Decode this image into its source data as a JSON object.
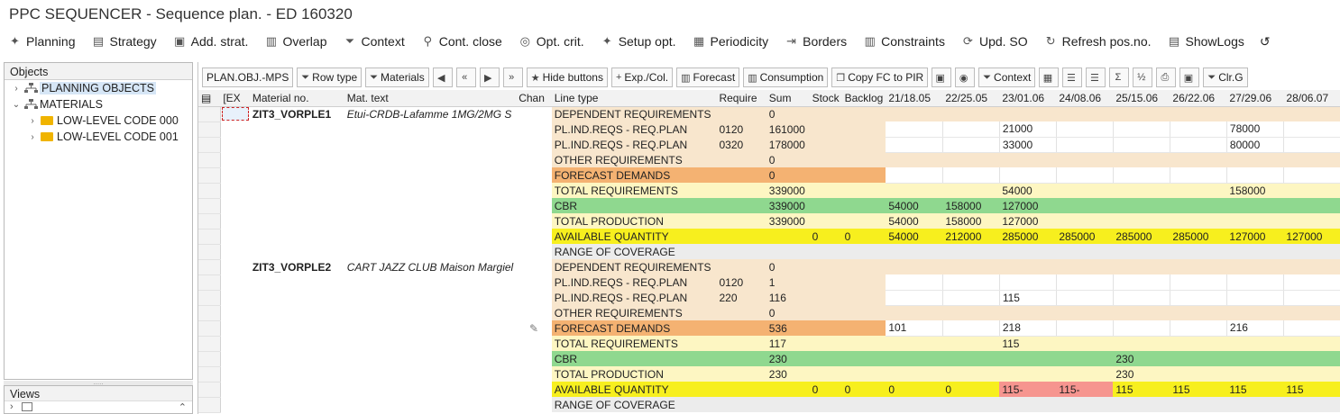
{
  "window": {
    "title": "PPC SEQUENCER - Sequence plan. - ED 160320"
  },
  "toolbar": [
    {
      "name": "planning-button",
      "icon": "wand-icon",
      "label": "Planning"
    },
    {
      "name": "strategy-button",
      "icon": "strategy-icon",
      "label": "Strategy"
    },
    {
      "name": "add-strat-button",
      "icon": "add-strategy-icon",
      "label": "Add. strat."
    },
    {
      "name": "overlap-button",
      "icon": "bar-chart-icon",
      "label": "Overlap"
    },
    {
      "name": "context-button",
      "icon": "filter-icon",
      "label": "Context"
    },
    {
      "name": "cont-close-button",
      "icon": "pin-icon",
      "label": "Cont. close"
    },
    {
      "name": "opt-crit-button",
      "icon": "criteria-icon",
      "label": "Opt. crit."
    },
    {
      "name": "setup-opt-button",
      "icon": "wand-icon",
      "label": "Setup opt."
    },
    {
      "name": "periodicity-button",
      "icon": "calendar-icon",
      "label": "Periodicity"
    },
    {
      "name": "borders-button",
      "icon": "borders-icon",
      "label": "Borders"
    },
    {
      "name": "constraints-button",
      "icon": "bar-chart-icon",
      "label": "Constraints"
    },
    {
      "name": "upd-so-button",
      "icon": "update-icon",
      "label": "Upd. SO"
    },
    {
      "name": "refresh-pos-button",
      "icon": "refresh-icon",
      "label": "Refresh pos.no."
    },
    {
      "name": "showlogs-button",
      "icon": "log-icon",
      "label": "ShowLogs"
    }
  ],
  "objects_panel": {
    "title": "Objects",
    "tree": [
      {
        "label": "PLANNING OBJECTS",
        "level": 0,
        "icon": "hierarchy-icon",
        "selected": true
      },
      {
        "label": "MATERIALS",
        "level": 0,
        "icon": "hierarchy-icon",
        "expanded": true
      },
      {
        "label": "LOW-LEVEL CODE 000",
        "level": 1,
        "icon": "folder-icon"
      },
      {
        "label": "LOW-LEVEL CODE 001",
        "level": 1,
        "icon": "folder-icon"
      }
    ]
  },
  "views_panel": {
    "title": "Views"
  },
  "grid_toolbar": [
    {
      "name": "plan-obj-mps-button",
      "icon": "",
      "label": "PLAN.OBJ.-MPS"
    },
    {
      "name": "row-type-button",
      "icon": "filter-icon",
      "label": "Row type"
    },
    {
      "name": "materials-button",
      "icon": "filter-icon",
      "label": "Materials"
    },
    {
      "name": "prev-button",
      "icon": "triangle-left-icon",
      "label": ""
    },
    {
      "name": "first-button",
      "icon": "double-chevron-left-icon",
      "label": ""
    },
    {
      "name": "next-button",
      "icon": "triangle-right-icon",
      "label": ""
    },
    {
      "name": "last-button",
      "icon": "double-chevron-right-icon",
      "label": ""
    },
    {
      "name": "hide-buttons-button",
      "icon": "star-icon",
      "label": "Hide buttons"
    },
    {
      "name": "exp-col-button",
      "icon": "plus-icon",
      "label": "Exp./Col."
    },
    {
      "name": "forecast-button",
      "icon": "chart-icon",
      "label": "Forecast"
    },
    {
      "name": "consumption-button",
      "icon": "chart-icon",
      "label": "Consumption"
    },
    {
      "name": "copy-fc-to-pir-button",
      "icon": "copy-icon",
      "label": "Copy FC to PIR"
    },
    {
      "name": "calc-button",
      "icon": "calc-icon",
      "label": ""
    },
    {
      "name": "find-button",
      "icon": "binoculars-icon",
      "label": ""
    },
    {
      "name": "context-grid-button",
      "icon": "filter-icon",
      "label": "Context"
    },
    {
      "name": "layout-button",
      "icon": "layout-icon",
      "label": ""
    },
    {
      "name": "align-button",
      "icon": "align-icon",
      "label": ""
    },
    {
      "name": "filter-grid-button",
      "icon": "funnel-icon",
      "label": ""
    },
    {
      "name": "sum-button",
      "icon": "sum-icon",
      "label": ""
    },
    {
      "name": "subtotal-button",
      "icon": "subtotal-icon",
      "label": ""
    },
    {
      "name": "print-button",
      "icon": "print-icon",
      "label": ""
    },
    {
      "name": "export-button",
      "icon": "export-icon",
      "label": ""
    },
    {
      "name": "clear-button",
      "icon": "filter-icon",
      "label": "Clr.G"
    }
  ],
  "grid": {
    "columns": [
      "[EX",
      "Material no.",
      "Mat. text",
      "Chan",
      "Line type",
      "Require",
      "Sum",
      "Stock",
      "Backlog",
      "21/18.05",
      "22/25.05",
      "23/01.06",
      "24/08.06",
      "25/15.06",
      "26/22.06",
      "27/29.06",
      "28/06.07"
    ],
    "rows": [
      {
        "type": "dep",
        "mat": "ZIT3_VORPLE1",
        "text": "Etui-CRDB-Lafamme 1MG/2MG S",
        "chg": "",
        "line": "DEPENDENT REQUIREMENTS",
        "req": "",
        "sum": "0",
        "stock": "",
        "backlog": "",
        "p": [
          "",
          "",
          "",
          "",
          "",
          "",
          "",
          ""
        ]
      },
      {
        "type": "pl",
        "mat": "",
        "text": "",
        "chg": "",
        "line": "PL.IND.REQS - REQ.PLAN",
        "req": "0120",
        "sum": "161000",
        "stock": "",
        "backlog": "",
        "p": [
          "",
          "",
          "21000",
          "",
          "",
          "",
          "78000",
          ""
        ]
      },
      {
        "type": "pl",
        "mat": "",
        "text": "",
        "chg": "",
        "line": "PL.IND.REQS - REQ.PLAN",
        "req": "0320",
        "sum": "178000",
        "stock": "",
        "backlog": "",
        "p": [
          "",
          "",
          "33000",
          "",
          "",
          "",
          "80000",
          ""
        ]
      },
      {
        "type": "oth",
        "mat": "",
        "text": "",
        "chg": "",
        "line": "OTHER REQUIREMENTS",
        "req": "",
        "sum": "0",
        "stock": "",
        "backlog": "",
        "p": [
          "",
          "",
          "",
          "",
          "",
          "",
          "",
          ""
        ]
      },
      {
        "type": "fc",
        "mat": "",
        "text": "",
        "chg": "",
        "line": "FORECAST DEMANDS",
        "req": "",
        "sum": "0",
        "stock": "",
        "backlog": "",
        "p": [
          "",
          "",
          "",
          "",
          "",
          "",
          "",
          ""
        ]
      },
      {
        "type": "tot",
        "mat": "",
        "text": "",
        "chg": "",
        "line": "TOTAL REQUIREMENTS",
        "req": "",
        "sum": "339000",
        "stock": "",
        "backlog": "",
        "p": [
          "",
          "",
          "54000",
          "",
          "",
          "",
          "158000",
          ""
        ]
      },
      {
        "type": "cbr",
        "mat": "",
        "text": "",
        "chg": "",
        "line": "CBR",
        "req": "",
        "sum": "339000",
        "stock": "",
        "backlog": "",
        "p": [
          "54000",
          "158000",
          "127000",
          "",
          "",
          "",
          "",
          ""
        ]
      },
      {
        "type": "prod",
        "mat": "",
        "text": "",
        "chg": "",
        "line": "TOTAL PRODUCTION",
        "req": "",
        "sum": "339000",
        "stock": "",
        "backlog": "",
        "p": [
          "54000",
          "158000",
          "127000",
          "",
          "",
          "",
          "",
          ""
        ]
      },
      {
        "type": "avl",
        "mat": "",
        "text": "",
        "chg": "",
        "line": "AVAILABLE QUANTITY",
        "req": "",
        "sum": "",
        "stock": "0",
        "backlog": "0",
        "p": [
          "54000",
          "212000",
          "285000",
          "285000",
          "285000",
          "285000",
          "127000",
          "127000"
        ],
        "neg": []
      },
      {
        "type": "rng",
        "mat": "",
        "text": "",
        "chg": "",
        "line": "RANGE OF COVERAGE",
        "req": "",
        "sum": "",
        "stock": "",
        "backlog": "",
        "p": [
          "",
          "",
          "",
          "",
          "",
          "",
          "",
          ""
        ]
      },
      {
        "type": "dep",
        "mat": "ZIT3_VORPLE2",
        "text": "CART JAZZ CLUB Maison Margiel",
        "chg": "",
        "line": "DEPENDENT REQUIREMENTS",
        "req": "",
        "sum": "0",
        "stock": "",
        "backlog": "",
        "p": [
          "",
          "",
          "",
          "",
          "",
          "",
          "",
          ""
        ]
      },
      {
        "type": "pl",
        "mat": "",
        "text": "",
        "chg": "",
        "line": "PL.IND.REQS - REQ.PLAN",
        "req": "0120",
        "sum": "1",
        "stock": "",
        "backlog": "",
        "p": [
          "",
          "",
          "",
          "",
          "",
          "",
          "",
          ""
        ]
      },
      {
        "type": "pl",
        "mat": "",
        "text": "",
        "chg": "",
        "line": "PL.IND.REQS - REQ.PLAN",
        "req": "220",
        "sum": "116",
        "stock": "",
        "backlog": "",
        "p": [
          "",
          "",
          "115",
          "",
          "",
          "",
          "",
          ""
        ]
      },
      {
        "type": "oth",
        "mat": "",
        "text": "",
        "chg": "",
        "line": "OTHER REQUIREMENTS",
        "req": "",
        "sum": "0",
        "stock": "",
        "backlog": "",
        "p": [
          "",
          "",
          "",
          "",
          "",
          "",
          "",
          ""
        ]
      },
      {
        "type": "fc",
        "mat": "",
        "text": "",
        "chg": "pencil-icon",
        "line": "FORECAST DEMANDS",
        "req": "",
        "sum": "536",
        "stock": "",
        "backlog": "",
        "p": [
          "101",
          "",
          "218",
          "",
          "",
          "",
          "216",
          ""
        ]
      },
      {
        "type": "tot",
        "mat": "",
        "text": "",
        "chg": "",
        "line": "TOTAL REQUIREMENTS",
        "req": "",
        "sum": "117",
        "stock": "",
        "backlog": "",
        "p": [
          "",
          "",
          "115",
          "",
          "",
          "",
          "",
          ""
        ]
      },
      {
        "type": "cbr",
        "mat": "",
        "text": "",
        "chg": "",
        "line": "CBR",
        "req": "",
        "sum": "230",
        "stock": "",
        "backlog": "",
        "p": [
          "",
          "",
          "",
          "",
          "230",
          "",
          "",
          ""
        ]
      },
      {
        "type": "prod",
        "mat": "",
        "text": "",
        "chg": "",
        "line": "TOTAL PRODUCTION",
        "req": "",
        "sum": "230",
        "stock": "",
        "backlog": "",
        "p": [
          "",
          "",
          "",
          "",
          "230",
          "",
          "",
          ""
        ]
      },
      {
        "type": "avl",
        "mat": "",
        "text": "",
        "chg": "",
        "line": "AVAILABLE QUANTITY",
        "req": "",
        "sum": "",
        "stock": "0",
        "backlog": "0",
        "p": [
          "0",
          "0",
          "115-",
          "115-",
          "115",
          "115",
          "115",
          "115"
        ],
        "neg": [
          2,
          3
        ]
      },
      {
        "type": "rng",
        "mat": "",
        "text": "",
        "chg": "",
        "line": "RANGE OF COVERAGE",
        "req": "",
        "sum": "",
        "stock": "",
        "backlog": "",
        "p": [
          "",
          "",
          "",
          "",
          "",
          "",
          "",
          ""
        ]
      }
    ]
  },
  "colors": {
    "dependent": "#f8e6cd",
    "forecast": "#f4b272",
    "total": "#fdf6c2",
    "cbr": "#8fd88f",
    "available": "#f7ef1e",
    "negative": "#f6958f",
    "range": "#ececec"
  }
}
